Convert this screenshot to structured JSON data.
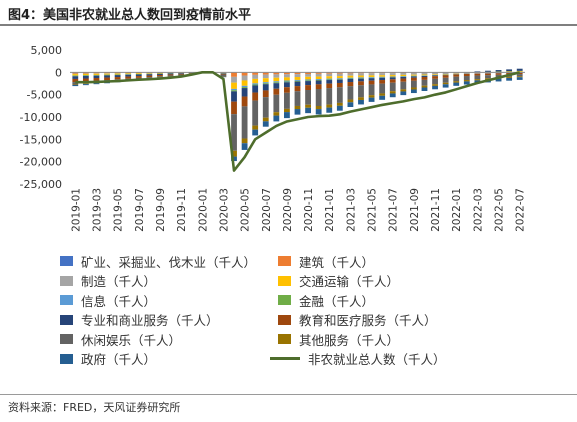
{
  "header": {
    "title": "图4：美国非农就业总人数回到疫情前水平"
  },
  "footer": {
    "source": "资料来源：FRED，天风证券研究所"
  },
  "chart_data": {
    "type": "bar",
    "stacked": true,
    "title": "",
    "xlabel": "",
    "ylabel": "",
    "ylim": [
      -25000,
      5000
    ],
    "yticks": [
      5000,
      0,
      -5000,
      -10000,
      -15000,
      -20000,
      -25000
    ],
    "ytick_labels": [
      "5,000",
      "0",
      "-5,000",
      "-10,000",
      "-15,000",
      "-20,000",
      "-25,000"
    ],
    "grid": false,
    "legend_position": "bottom",
    "xtick_labels": [
      "2019-01",
      "2019-03",
      "2019-05",
      "2019-07",
      "2019-09",
      "2019-11",
      "2020-01",
      "2020-03",
      "2020-05",
      "2020-07",
      "2020-09",
      "2020-11",
      "2021-01",
      "2021-03",
      "2021-05",
      "2021-07",
      "2021-09",
      "2021-11",
      "2022-01",
      "2022-03",
      "2022-05",
      "2022-07"
    ],
    "categories": [
      "2019-01",
      "2019-02",
      "2019-03",
      "2019-04",
      "2019-05",
      "2019-06",
      "2019-07",
      "2019-08",
      "2019-09",
      "2019-10",
      "2019-11",
      "2019-12",
      "2020-01",
      "2020-02",
      "2020-03",
      "2020-04",
      "2020-05",
      "2020-06",
      "2020-07",
      "2020-08",
      "2020-09",
      "2020-10",
      "2020-11",
      "2020-12",
      "2021-01",
      "2021-02",
      "2021-03",
      "2021-04",
      "2021-05",
      "2021-06",
      "2021-07",
      "2021-08",
      "2021-09",
      "2021-10",
      "2021-11",
      "2021-12",
      "2022-01",
      "2022-02",
      "2022-03",
      "2022-04",
      "2022-05",
      "2022-06",
      "2022-07"
    ],
    "series": [
      {
        "name": "矿业、采掘业、伐木业（千人）",
        "type": "bar",
        "color": "#4472c4",
        "values": [
          -20,
          -18,
          -17,
          -15,
          -14,
          -13,
          -11,
          -10,
          -8,
          -6,
          -4,
          -2,
          0,
          0,
          -10,
          -60,
          -70,
          -65,
          -60,
          -55,
          -50,
          -50,
          -48,
          -47,
          -45,
          -43,
          -40,
          -38,
          -36,
          -34,
          -32,
          -30,
          -28,
          -26,
          -24,
          -22,
          -20,
          -18,
          -15,
          -12,
          -10,
          -8,
          -5
        ]
      },
      {
        "name": "建筑（千人）",
        "type": "bar",
        "color": "#ed7d31",
        "values": [
          -250,
          -230,
          -210,
          -190,
          -170,
          -150,
          -130,
          -110,
          -90,
          -70,
          -50,
          -25,
          0,
          0,
          -50,
          -950,
          -650,
          -500,
          -450,
          -400,
          -380,
          -350,
          -330,
          -300,
          -260,
          -240,
          -200,
          -180,
          -160,
          -150,
          -140,
          -120,
          -100,
          -80,
          -60,
          -40,
          -20,
          0,
          20,
          40,
          60,
          80,
          100
        ]
      },
      {
        "name": "制造（千人）",
        "type": "bar",
        "color": "#a5a5a5",
        "values": [
          -120,
          -110,
          -100,
          -90,
          -80,
          -70,
          -60,
          -50,
          -40,
          -30,
          -20,
          -10,
          0,
          0,
          -50,
          -1300,
          -1100,
          -900,
          -800,
          -750,
          -700,
          -650,
          -620,
          -600,
          -580,
          -560,
          -520,
          -500,
          -480,
          -460,
          -440,
          -420,
          -400,
          -380,
          -350,
          -320,
          -280,
          -250,
          -220,
          -190,
          -160,
          -130,
          -100
        ]
      },
      {
        "name": "交通运输（千人）",
        "type": "bar",
        "color": "#ffc000",
        "values": [
          -300,
          -280,
          -260,
          -240,
          -210,
          -190,
          -170,
          -150,
          -120,
          -90,
          -60,
          -30,
          0,
          0,
          -80,
          -1400,
          -1200,
          -1000,
          -900,
          -800,
          -700,
          -650,
          -600,
          -550,
          -520,
          -490,
          -450,
          -420,
          -390,
          -360,
          -320,
          -280,
          -240,
          -200,
          -150,
          -100,
          -60,
          -20,
          20,
          60,
          100,
          140,
          180
        ]
      },
      {
        "name": "信息（千人）",
        "type": "bar",
        "color": "#5b9bd5",
        "values": [
          -40,
          -38,
          -35,
          -32,
          -29,
          -26,
          -23,
          -20,
          -16,
          -12,
          -8,
          -4,
          0,
          0,
          -20,
          -300,
          -280,
          -260,
          -250,
          -240,
          -230,
          -220,
          -210,
          -200,
          -190,
          -180,
          -170,
          -160,
          -150,
          -140,
          -130,
          -120,
          -110,
          -100,
          -90,
          -80,
          -70,
          -60,
          -50,
          -40,
          -30,
          -20,
          -10
        ]
      },
      {
        "name": "金融（千人）",
        "type": "bar",
        "color": "#70ad47",
        "values": [
          -150,
          -140,
          -130,
          -120,
          -110,
          -100,
          -90,
          -80,
          -70,
          -55,
          -40,
          -20,
          0,
          0,
          -20,
          -250,
          -220,
          -200,
          -190,
          -180,
          -170,
          -160,
          -150,
          -140,
          -130,
          -120,
          -110,
          -100,
          -90,
          -80,
          -70,
          -60,
          -50,
          -40,
          -30,
          -20,
          -10,
          0,
          10,
          20,
          30,
          40,
          50
        ]
      },
      {
        "name": "专业和商业服务（千人）",
        "type": "bar",
        "color": "#264478",
        "values": [
          -600,
          -560,
          -520,
          -480,
          -440,
          -400,
          -350,
          -300,
          -250,
          -200,
          -150,
          -80,
          0,
          0,
          -100,
          -2300,
          -1900,
          -1600,
          -1400,
          -1250,
          -1100,
          -1000,
          -900,
          -850,
          -800,
          -750,
          -680,
          -620,
          -560,
          -500,
          -430,
          -360,
          -290,
          -220,
          -150,
          -80,
          0,
          80,
          160,
          240,
          320,
          400,
          480
        ]
      },
      {
        "name": "教育和医疗服务（千人）",
        "type": "bar",
        "color": "#9e480e",
        "values": [
          -700,
          -650,
          -600,
          -560,
          -510,
          -460,
          -410,
          -350,
          -290,
          -230,
          -160,
          -80,
          0,
          0,
          -150,
          -2800,
          -2200,
          -1800,
          -1500,
          -1350,
          -1250,
          -1150,
          -1100,
          -1050,
          -1000,
          -960,
          -920,
          -880,
          -840,
          -800,
          -760,
          -720,
          -680,
          -640,
          -600,
          -560,
          -520,
          -480,
          -440,
          -400,
          -360,
          -320,
          -280
        ]
      },
      {
        "name": "休闲娱乐（千人）",
        "type": "bar",
        "color": "#636363",
        "values": [
          -550,
          -510,
          -470,
          -430,
          -390,
          -350,
          -310,
          -270,
          -220,
          -170,
          -110,
          -60,
          0,
          0,
          -500,
          -8200,
          -7200,
          -5600,
          -4600,
          -3900,
          -3600,
          -3300,
          -3300,
          -3800,
          -3700,
          -3500,
          -3000,
          -2700,
          -2400,
          -2200,
          -1900,
          -1700,
          -1500,
          -1300,
          -1200,
          -1100,
          -1000,
          -900,
          -800,
          -700,
          -600,
          -550,
          -500
        ]
      },
      {
        "name": "其他服务（千人）",
        "type": "bar",
        "color": "#997300",
        "values": [
          -100,
          -95,
          -90,
          -85,
          -78,
          -70,
          -62,
          -54,
          -45,
          -35,
          -25,
          -12,
          0,
          0,
          -40,
          -1300,
          -1050,
          -900,
          -820,
          -760,
          -720,
          -690,
          -680,
          -690,
          -670,
          -650,
          -620,
          -590,
          -560,
          -530,
          -500,
          -470,
          -440,
          -410,
          -380,
          -350,
          -320,
          -300,
          -280,
          -260,
          -240,
          -220,
          -200
        ]
      },
      {
        "name": "政府（千人）",
        "type": "bar",
        "color": "#255e91",
        "values": [
          -250,
          -235,
          -220,
          -205,
          -190,
          -175,
          -160,
          -140,
          -120,
          -95,
          -70,
          -35,
          0,
          0,
          -50,
          -1000,
          -1500,
          -1300,
          -1200,
          -1300,
          -1350,
          -1250,
          -1200,
          -1200,
          -1150,
          -1100,
          -1050,
          -1000,
          -950,
          -900,
          -850,
          -820,
          -800,
          -780,
          -760,
          -740,
          -720,
          -700,
          -680,
          -660,
          -640,
          -620,
          -600
        ]
      },
      {
        "name": "非农就业总人数（千人）",
        "type": "line",
        "color": "#4e6d2c",
        "values": [
          -2200,
          -2200,
          -2150,
          -2050,
          -1950,
          -1800,
          -1650,
          -1550,
          -1400,
          -1200,
          -950,
          -500,
          0,
          0,
          -1500,
          -22000,
          -19000,
          -15000,
          -13500,
          -12000,
          -11000,
          -10500,
          -10000,
          -9800,
          -9700,
          -9400,
          -8800,
          -8300,
          -7800,
          -7300,
          -6900,
          -6500,
          -6000,
          -5600,
          -5000,
          -4500,
          -3800,
          -3100,
          -2400,
          -1800,
          -1200,
          -600,
          0
        ]
      }
    ]
  },
  "legend": {
    "items": [
      {
        "label": "矿业、采掘业、伐木业（千人）",
        "color": "#4472c4",
        "kind": "bar"
      },
      {
        "label": "建筑（千人）",
        "color": "#ed7d31",
        "kind": "bar"
      },
      {
        "label": "制造（千人）",
        "color": "#a5a5a5",
        "kind": "bar"
      },
      {
        "label": "交通运输（千人）",
        "color": "#ffc000",
        "kind": "bar"
      },
      {
        "label": "信息（千人）",
        "color": "#5b9bd5",
        "kind": "bar"
      },
      {
        "label": "金融（千人）",
        "color": "#70ad47",
        "kind": "bar"
      },
      {
        "label": "专业和商业服务（千人）",
        "color": "#264478",
        "kind": "bar"
      },
      {
        "label": "教育和医疗服务（千人）",
        "color": "#9e480e",
        "kind": "bar"
      },
      {
        "label": "休闲娱乐（千人）",
        "color": "#636363",
        "kind": "bar"
      },
      {
        "label": "其他服务（千人）",
        "color": "#997300",
        "kind": "bar"
      },
      {
        "label": "政府（千人）",
        "color": "#255e91",
        "kind": "bar"
      },
      {
        "label": "非农就业总人数（千人）",
        "color": "#4e6d2c",
        "kind": "line"
      }
    ]
  }
}
